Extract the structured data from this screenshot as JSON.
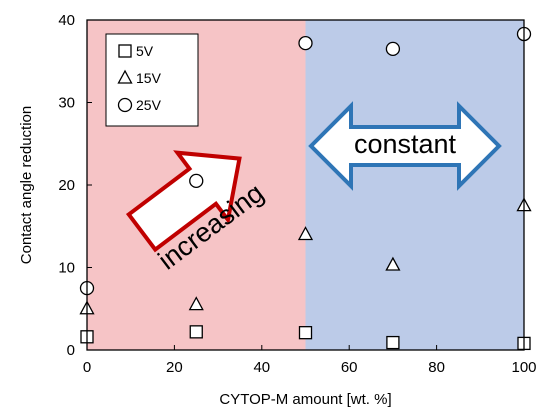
{
  "chart_data": {
    "type": "scatter",
    "xlabel": "CYTOP-M amount [wt. %]",
    "ylabel": "Contact angle reduction",
    "xlim": [
      0,
      100
    ],
    "ylim": [
      0,
      40
    ],
    "xticks": [
      "0",
      "20",
      "40",
      "60",
      "80",
      "100"
    ],
    "yticks": [
      "0",
      "10",
      "20",
      "30",
      "40"
    ],
    "grid": false,
    "legend_position": "top-left",
    "series": [
      {
        "name": "5V",
        "marker": "square",
        "x": [
          0,
          25,
          50,
          70,
          100
        ],
        "y": [
          1.6,
          2.2,
          2.1,
          0.9,
          0.8
        ]
      },
      {
        "name": "15V",
        "marker": "triangle",
        "x": [
          0,
          25,
          50,
          70,
          100
        ],
        "y": [
          5.0,
          5.5,
          14.0,
          10.3,
          17.5
        ]
      },
      {
        "name": "25V",
        "marker": "circle",
        "x": [
          0,
          25,
          50,
          70,
          100
        ],
        "y": [
          7.5,
          20.5,
          37.2,
          36.5,
          38.3
        ]
      }
    ],
    "regions": [
      {
        "x": [
          0,
          50
        ],
        "color": "#f6c4c6"
      },
      {
        "x": [
          50,
          100
        ],
        "color": "#bccbe8"
      }
    ],
    "annotations": [
      {
        "text": "increasing",
        "arrow_color": "#c00000"
      },
      {
        "text": "constant",
        "arrow_color": "#2e75b6"
      }
    ]
  }
}
